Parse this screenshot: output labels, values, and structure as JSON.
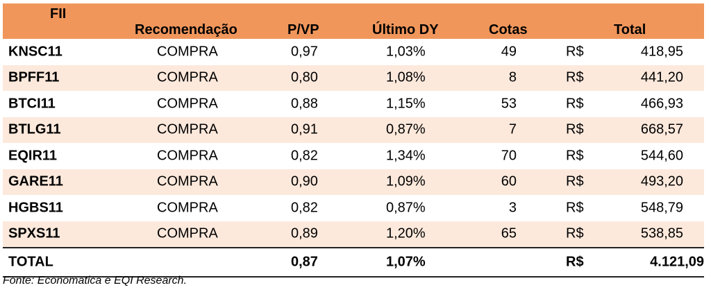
{
  "header": {
    "fii": "FII",
    "recomendacao": "Recomendação",
    "pvp": "P/VP",
    "ultimo_dy": "Último DY",
    "cotas": "Cotas",
    "total": "Total"
  },
  "rows": [
    {
      "fii": "KNSC11",
      "recomendacao": "COMPRA",
      "pvp": "0,97",
      "dy": "1,03%",
      "cotas": "49",
      "currency": "R$",
      "total": "418,95"
    },
    {
      "fii": "BPFF11",
      "recomendacao": "COMPRA",
      "pvp": "0,80",
      "dy": "1,08%",
      "cotas": "8",
      "currency": "R$",
      "total": "441,20"
    },
    {
      "fii": "BTCI11",
      "recomendacao": "COMPRA",
      "pvp": "0,88",
      "dy": "1,15%",
      "cotas": "53",
      "currency": "R$",
      "total": "466,93"
    },
    {
      "fii": "BTLG11",
      "recomendacao": "COMPRA",
      "pvp": "0,91",
      "dy": "0,87%",
      "cotas": "7",
      "currency": "R$",
      "total": "668,57"
    },
    {
      "fii": "EQIR11",
      "recomendacao": "COMPRA",
      "pvp": "0,82",
      "dy": "1,34%",
      "cotas": "70",
      "currency": "R$",
      "total": "544,60"
    },
    {
      "fii": "GARE11",
      "recomendacao": "COMPRA",
      "pvp": "0,90",
      "dy": "1,09%",
      "cotas": "60",
      "currency": "R$",
      "total": "493,20"
    },
    {
      "fii": "HGBS11",
      "recomendacao": "COMPRA",
      "pvp": "0,82",
      "dy": "0,87%",
      "cotas": "3",
      "currency": "R$",
      "total": "548,79"
    },
    {
      "fii": "SPXS11",
      "recomendacao": "COMPRA",
      "pvp": "0,89",
      "dy": "1,20%",
      "cotas": "65",
      "currency": "R$",
      "total": "538,85"
    }
  ],
  "total_row": {
    "label": "TOTAL",
    "pvp": "0,87",
    "dy": "1,07%",
    "currency": "R$",
    "total": "4.121,09"
  },
  "footer": {
    "source": "Fonte: Economatica e EQI Research."
  },
  "colors": {
    "header_bg": "#f0965b",
    "stripe_bg": "#fde9dc"
  }
}
